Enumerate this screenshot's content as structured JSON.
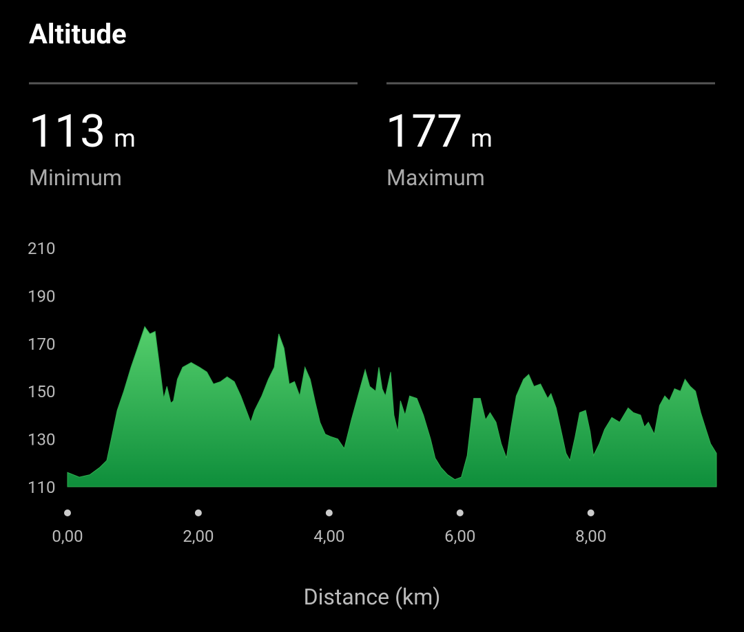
{
  "header": {
    "title": "Altitude"
  },
  "stats": [
    {
      "value": 113,
      "unit": "m",
      "label": "Minimum"
    },
    {
      "value": 177,
      "unit": "m",
      "label": "Maximum"
    }
  ],
  "chart_data": {
    "type": "area",
    "x_label": "Distance (km)",
    "color": "#2fae4f",
    "x": [
      0,
      0.18,
      0.34,
      0.49,
      0.6,
      0.67,
      0.76,
      0.86,
      0.97,
      1.07,
      1.18,
      1.26,
      1.34,
      1.41,
      1.47,
      1.52,
      1.58,
      1.62,
      1.68,
      1.76,
      1.89,
      2.02,
      2.13,
      2.23,
      2.34,
      2.44,
      2.55,
      2.65,
      2.76,
      2.8,
      2.86,
      2.97,
      3.07,
      3.16,
      3.23,
      3.31,
      3.39,
      3.47,
      3.55,
      3.63,
      3.71,
      3.79,
      3.86,
      3.94,
      4.02,
      4.13,
      4.23,
      4.34,
      4.44,
      4.55,
      4.62,
      4.71,
      4.76,
      4.81,
      4.86,
      4.94,
      4.99,
      5.05,
      5.09,
      5.16,
      5.23,
      5.34,
      5.44,
      5.55,
      5.62,
      5.71,
      5.81,
      5.92,
      6.02,
      6.11,
      6.21,
      6.31,
      6.39,
      6.46,
      6.55,
      6.63,
      6.71,
      6.78,
      6.86,
      6.97,
      7.05,
      7.13,
      7.23,
      7.34,
      7.39,
      7.47,
      7.55,
      7.62,
      7.68,
      7.76,
      7.83,
      7.92,
      7.99,
      8.04,
      8.13,
      8.21,
      8.32,
      8.44,
      8.57,
      8.65,
      8.76,
      8.82,
      8.88,
      8.97,
      9.05,
      9.13,
      9.2,
      9.28,
      9.37,
      9.44,
      9.52,
      9.6,
      9.68,
      9.76,
      9.83,
      9.92
    ],
    "values": [
      116,
      114,
      115,
      118,
      121,
      130,
      142,
      150,
      160,
      168,
      177,
      174,
      175,
      160,
      147,
      152,
      145,
      146,
      155,
      160,
      162,
      160,
      158,
      153,
      154,
      156,
      154,
      148,
      140,
      137,
      142,
      148,
      155,
      160,
      174,
      168,
      153,
      154,
      148,
      160,
      155,
      145,
      137,
      132,
      131,
      130,
      126,
      138,
      148,
      159,
      152,
      150,
      160,
      151,
      148,
      158,
      140,
      133,
      146,
      140,
      148,
      147,
      140,
      130,
      122,
      118,
      115,
      113,
      114,
      123,
      147,
      147,
      138,
      141,
      137,
      128,
      122,
      135,
      148,
      155,
      157,
      152,
      153,
      147,
      149,
      143,
      133,
      124,
      121,
      131,
      141,
      142,
      133,
      123,
      128,
      134,
      139,
      137,
      143,
      141,
      140,
      135,
      137,
      132,
      144,
      148,
      146,
      151,
      150,
      155,
      152,
      150,
      141,
      134,
      128,
      124
    ],
    "xlim": [
      0,
      9.92
    ],
    "xticks": [
      {
        "value": 0,
        "label": "0,00"
      },
      {
        "value": 2,
        "label": "2,00"
      },
      {
        "value": 4,
        "label": "4,00"
      },
      {
        "value": 6,
        "label": "6,00"
      },
      {
        "value": 8,
        "label": "8,00"
      }
    ],
    "ylim": [
      110,
      210
    ],
    "yticks": [
      110,
      130,
      150,
      170,
      190,
      210
    ]
  }
}
